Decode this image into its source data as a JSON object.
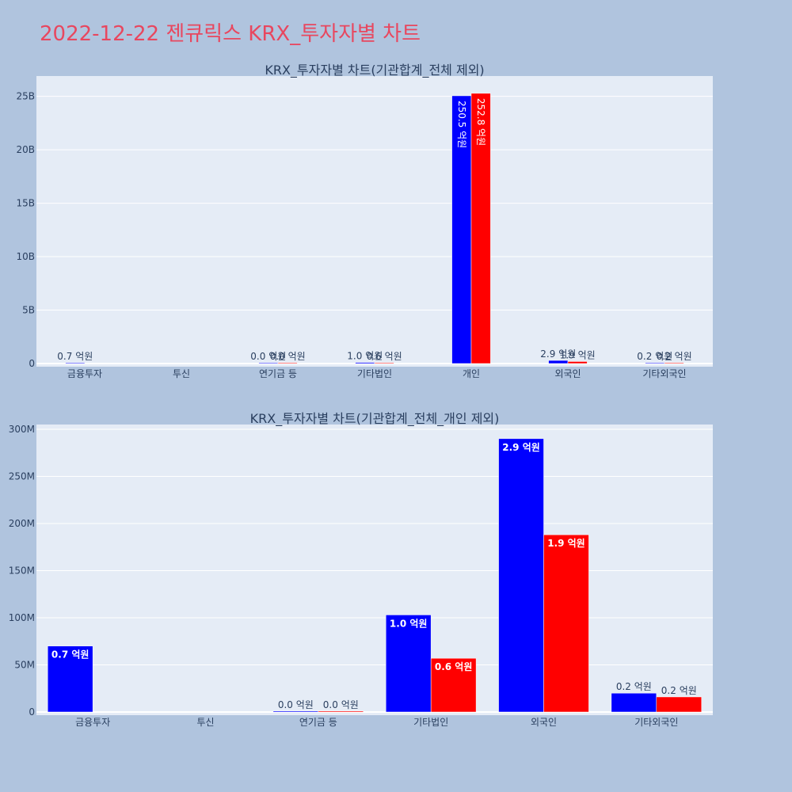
{
  "page_title": "2022-12-22 젠큐릭스 KRX_투자자별 차트",
  "colors": {
    "page_bg": "#b0c4de",
    "plot_bg": "#e5ecf6",
    "title": "#e8475f",
    "buy": "#0000ff",
    "sell": "#ff0000"
  },
  "chart_data": [
    {
      "type": "bar",
      "title": "KRX_투자자별 차트(기관합계_전체 제외)",
      "categories": [
        "금융투자",
        "투신",
        "연기금 등",
        "기타법인",
        "개인",
        "외국인",
        "기타외국인"
      ],
      "series": [
        {
          "values": [
            70000000,
            0,
            1000000,
            103000000,
            25050000000,
            290000000,
            20000000
          ],
          "labels": [
            "0.7 억원",
            "",
            "0.0 억원",
            "1.0 억원",
            "250.5 억원",
            "2.9 억원",
            "0.2 억원"
          ]
        },
        {
          "values": [
            0,
            0,
            1000000,
            57000000,
            25280000000,
            188000000,
            16000000
          ],
          "labels": [
            "",
            "",
            "0.0 억원",
            "0.6 억원",
            "252.8 억원",
            "1.9 억원",
            "0.2 억원"
          ]
        }
      ],
      "y_ticks": [
        0,
        5000000000,
        10000000000,
        15000000000,
        20000000000,
        25000000000
      ],
      "y_tick_labels": [
        "0",
        "5B",
        "10B",
        "15B",
        "20B",
        "25B"
      ],
      "ylim": [
        0,
        26900000000
      ],
      "grid": true
    },
    {
      "type": "bar",
      "title": "KRX_투자자별 차트(기관합계_전체_개인 제외)",
      "categories": [
        "금융투자",
        "투신",
        "연기금 등",
        "기타법인",
        "외국인",
        "기타외국인"
      ],
      "series": [
        {
          "values": [
            70000000,
            0,
            1000000,
            103000000,
            290000000,
            20000000
          ],
          "labels": [
            "0.7 억원",
            "",
            "0.0 억원",
            "1.0 억원",
            "2.9 억원",
            "0.2 억원"
          ]
        },
        {
          "values": [
            0,
            0,
            1000000,
            57000000,
            188000000,
            16000000
          ],
          "labels": [
            "",
            "",
            "0.0 억원",
            "0.6 억원",
            "1.9 억원",
            "0.2 억원"
          ]
        }
      ],
      "y_ticks": [
        0,
        50000000,
        100000000,
        150000000,
        200000000,
        250000000,
        300000000
      ],
      "y_tick_labels": [
        "0",
        "50M",
        "100M",
        "150M",
        "200M",
        "250M",
        "300M"
      ],
      "ylim": [
        0,
        305000000
      ],
      "grid": true
    }
  ]
}
